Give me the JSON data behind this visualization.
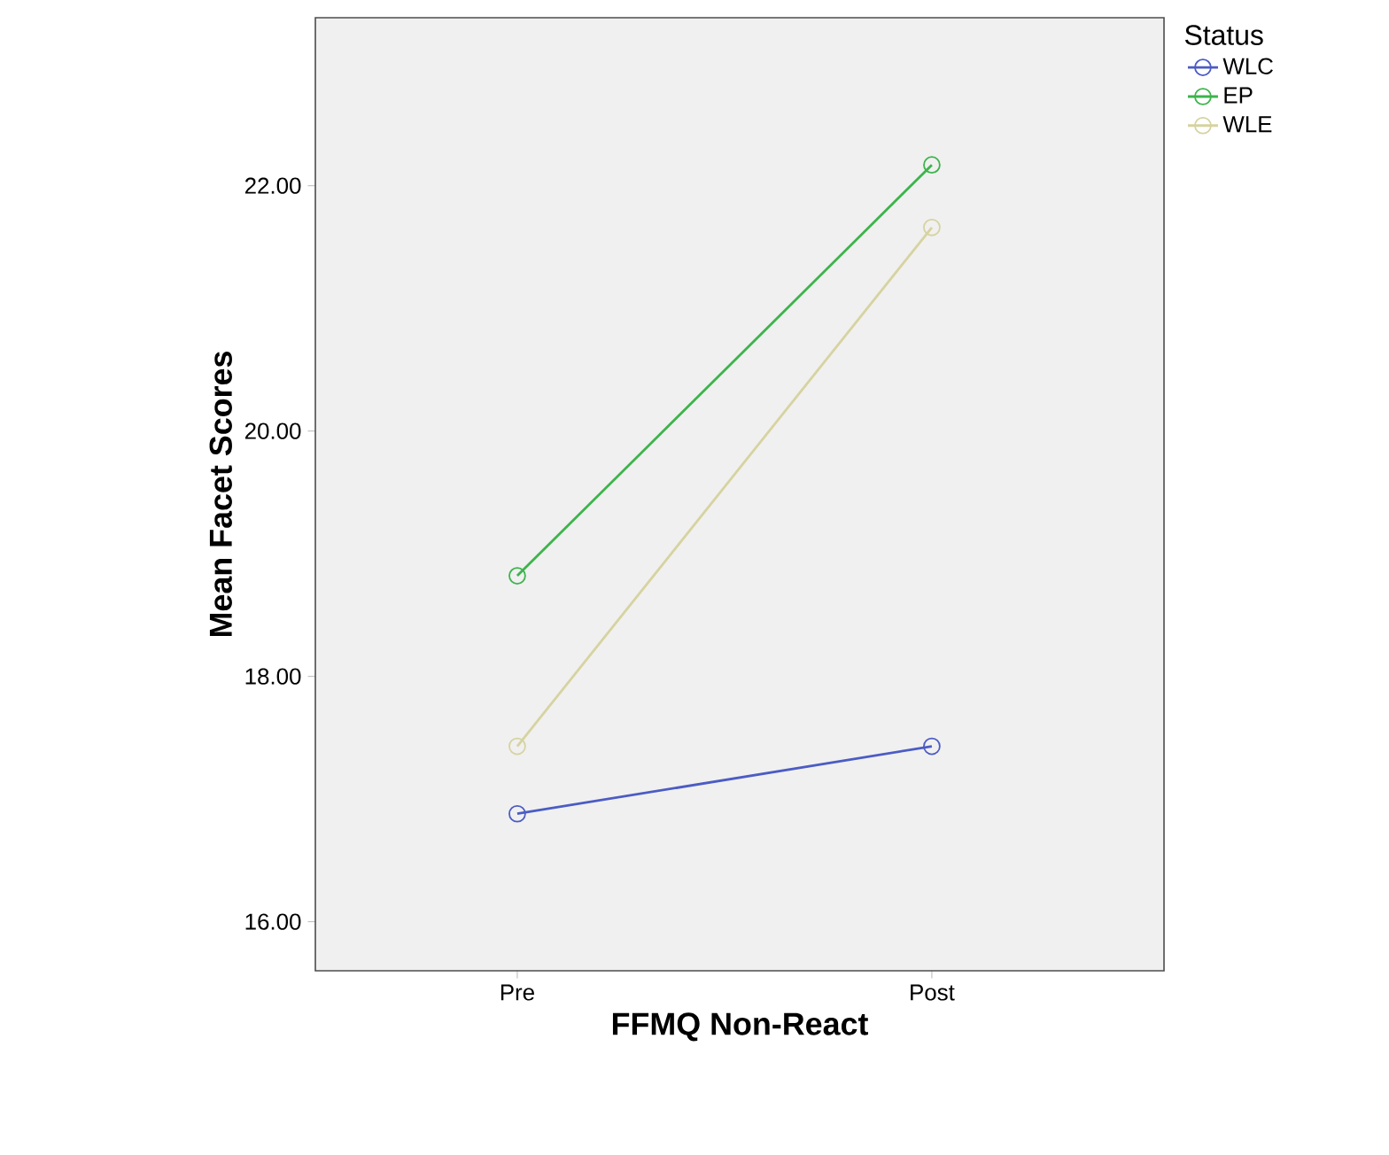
{
  "chart_data": {
    "type": "line",
    "xlabel": "FFMQ Non-React",
    "ylabel": "Mean Facet Scores",
    "legend_title": "Status",
    "legend": "right",
    "marker": "circle",
    "categories": [
      "Pre",
      "Post"
    ],
    "ylim": [
      15.6,
      23.37
    ],
    "yticks": [
      {
        "value": 16,
        "label": "16.00"
      },
      {
        "value": 18,
        "label": "18.00"
      },
      {
        "value": 20,
        "label": "20.00"
      },
      {
        "value": 22,
        "label": "22.00"
      }
    ],
    "series": [
      {
        "name": "WLC",
        "color": "#4b5cc4",
        "values": [
          16.88,
          17.43
        ]
      },
      {
        "name": "EP",
        "color": "#3cb44b",
        "values": [
          18.82,
          22.17
        ]
      },
      {
        "name": "WLE",
        "color": "#d6d3a0",
        "values": [
          17.43,
          21.66
        ]
      }
    ]
  }
}
